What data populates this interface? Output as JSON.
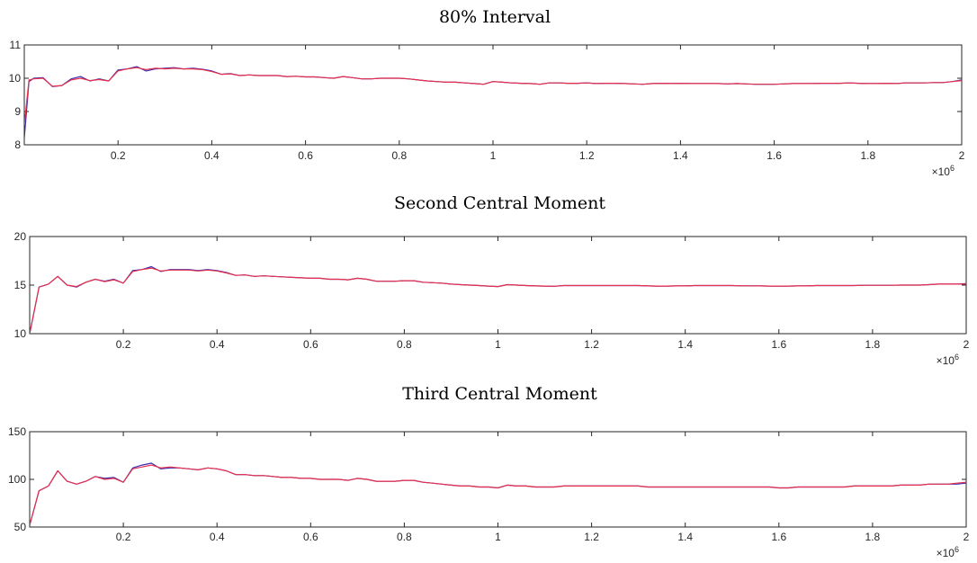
{
  "chart_data": [
    {
      "type": "line",
      "title": "80% Interval",
      "xlabel": "",
      "ylabel": "",
      "xlim": [
        0,
        2000000
      ],
      "ylim": [
        8,
        11
      ],
      "x_ticks": [
        "0.2",
        "0.4",
        "0.6",
        "0.8",
        "1",
        "1.2",
        "1.4",
        "1.6",
        "1.8",
        "2"
      ],
      "y_ticks": [
        "8",
        "9",
        "10",
        "11"
      ],
      "x_exponent": "×10",
      "x_exponent_power": "6",
      "grid": false,
      "x": [
        0,
        10000,
        20000,
        40000,
        60000,
        80000,
        100000,
        120000,
        140000,
        160000,
        180000,
        200000,
        220000,
        240000,
        260000,
        280000,
        300000,
        320000,
        340000,
        360000,
        380000,
        400000,
        420000,
        440000,
        460000,
        480000,
        500000,
        520000,
        540000,
        560000,
        580000,
        600000,
        620000,
        640000,
        660000,
        680000,
        700000,
        720000,
        740000,
        760000,
        780000,
        800000,
        820000,
        840000,
        860000,
        880000,
        900000,
        920000,
        940000,
        960000,
        980000,
        1000000,
        1020000,
        1040000,
        1060000,
        1080000,
        1100000,
        1120000,
        1140000,
        1160000,
        1180000,
        1200000,
        1220000,
        1240000,
        1260000,
        1280000,
        1300000,
        1320000,
        1340000,
        1360000,
        1380000,
        1400000,
        1420000,
        1440000,
        1460000,
        1480000,
        1500000,
        1520000,
        1540000,
        1560000,
        1580000,
        1600000,
        1620000,
        1640000,
        1660000,
        1680000,
        1700000,
        1720000,
        1740000,
        1760000,
        1780000,
        1800000,
        1820000,
        1840000,
        1860000,
        1880000,
        1900000,
        1920000,
        1940000,
        1960000,
        1980000,
        2000000
      ],
      "series": [
        {
          "color": "#3a2cb0",
          "values": [
            8.2,
            9.9,
            10.0,
            10.02,
            9.75,
            9.78,
            9.98,
            10.05,
            9.92,
            9.98,
            9.92,
            10.25,
            10.28,
            10.35,
            10.22,
            10.28,
            10.3,
            10.32,
            10.28,
            10.3,
            10.27,
            10.22,
            10.12,
            10.14,
            10.08,
            10.1,
            10.08,
            10.08,
            10.08,
            10.05,
            10.06,
            10.04,
            10.04,
            10.02,
            10.0,
            10.05,
            10.02,
            9.98,
            9.98,
            10.0,
            10.0,
            10.0,
            9.98,
            9.95,
            9.92,
            9.9,
            9.88,
            9.88,
            9.86,
            9.84,
            9.82,
            9.9,
            9.88,
            9.86,
            9.85,
            9.84,
            9.82,
            9.86,
            9.86,
            9.85,
            9.85,
            9.86,
            9.84,
            9.85,
            9.85,
            9.84,
            9.83,
            9.82,
            9.84,
            9.85,
            9.84,
            9.85,
            9.84,
            9.84,
            9.84,
            9.84,
            9.83,
            9.84,
            9.83,
            9.82,
            9.82,
            9.82,
            9.83,
            9.84,
            9.84,
            9.84,
            9.85,
            9.85,
            9.85,
            9.86,
            9.85,
            9.84,
            9.84,
            9.85,
            9.84,
            9.86,
            9.86,
            9.86,
            9.87,
            9.87,
            9.9,
            9.95
          ]
        },
        {
          "color": "#e8304c",
          "values": [
            8.6,
            9.95,
            9.98,
            10.0,
            9.76,
            9.78,
            9.95,
            10.0,
            9.93,
            9.96,
            9.92,
            10.22,
            10.28,
            10.32,
            10.26,
            10.3,
            10.28,
            10.3,
            10.28,
            10.28,
            10.26,
            10.2,
            10.12,
            10.13,
            10.08,
            10.1,
            10.08,
            10.08,
            10.08,
            10.05,
            10.06,
            10.04,
            10.04,
            10.02,
            10.0,
            10.05,
            10.02,
            9.98,
            9.98,
            10.0,
            10.0,
            10.0,
            9.98,
            9.95,
            9.92,
            9.9,
            9.88,
            9.88,
            9.86,
            9.84,
            9.82,
            9.9,
            9.88,
            9.86,
            9.85,
            9.84,
            9.82,
            9.86,
            9.86,
            9.85,
            9.85,
            9.86,
            9.84,
            9.85,
            9.85,
            9.84,
            9.83,
            9.82,
            9.84,
            9.85,
            9.84,
            9.85,
            9.84,
            9.84,
            9.84,
            9.84,
            9.83,
            9.84,
            9.83,
            9.82,
            9.82,
            9.82,
            9.83,
            9.84,
            9.84,
            9.84,
            9.85,
            9.85,
            9.85,
            9.86,
            9.85,
            9.84,
            9.84,
            9.85,
            9.84,
            9.86,
            9.86,
            9.86,
            9.87,
            9.87,
            9.9,
            9.93
          ]
        }
      ]
    },
    {
      "type": "line",
      "title": "Second Central Moment",
      "xlabel": "",
      "ylabel": "",
      "xlim": [
        0,
        2000000
      ],
      "ylim": [
        10,
        20
      ],
      "x_ticks": [
        "0.2",
        "0.4",
        "0.6",
        "0.8",
        "1",
        "1.2",
        "1.4",
        "1.6",
        "1.8",
        "2"
      ],
      "y_ticks": [
        "10",
        "15",
        "20"
      ],
      "x_exponent": "×10",
      "x_exponent_power": "6",
      "grid": false,
      "x": [
        0,
        20000,
        40000,
        60000,
        80000,
        100000,
        120000,
        140000,
        160000,
        180000,
        200000,
        220000,
        240000,
        260000,
        280000,
        300000,
        320000,
        340000,
        360000,
        380000,
        400000,
        420000,
        440000,
        460000,
        480000,
        500000,
        520000,
        540000,
        560000,
        580000,
        600000,
        620000,
        640000,
        660000,
        680000,
        700000,
        720000,
        740000,
        760000,
        780000,
        800000,
        820000,
        840000,
        860000,
        880000,
        900000,
        920000,
        940000,
        960000,
        980000,
        1000000,
        1020000,
        1040000,
        1060000,
        1080000,
        1100000,
        1120000,
        1140000,
        1160000,
        1180000,
        1200000,
        1220000,
        1240000,
        1260000,
        1280000,
        1300000,
        1320000,
        1340000,
        1360000,
        1380000,
        1400000,
        1420000,
        1440000,
        1460000,
        1480000,
        1500000,
        1520000,
        1540000,
        1560000,
        1580000,
        1600000,
        1620000,
        1640000,
        1660000,
        1680000,
        1700000,
        1720000,
        1740000,
        1760000,
        1780000,
        1800000,
        1820000,
        1840000,
        1860000,
        1880000,
        1900000,
        1920000,
        1940000,
        1960000,
        1980000,
        2000000
      ],
      "series": [
        {
          "color": "#3a2cb0",
          "values": [
            10.0,
            14.8,
            15.1,
            15.9,
            15.0,
            14.8,
            15.3,
            15.6,
            15.4,
            15.6,
            15.2,
            16.5,
            16.6,
            16.9,
            16.4,
            16.6,
            16.6,
            16.6,
            16.5,
            16.6,
            16.5,
            16.3,
            16.0,
            16.05,
            15.9,
            15.95,
            15.9,
            15.85,
            15.8,
            15.75,
            15.7,
            15.7,
            15.6,
            15.6,
            15.55,
            15.7,
            15.6,
            15.4,
            15.4,
            15.4,
            15.45,
            15.45,
            15.3,
            15.25,
            15.2,
            15.1,
            15.05,
            15.0,
            14.95,
            14.9,
            14.85,
            15.05,
            15.0,
            14.95,
            14.92,
            14.9,
            14.88,
            14.95,
            14.95,
            14.95,
            14.95,
            14.95,
            14.95,
            14.95,
            14.95,
            14.95,
            14.92,
            14.9,
            14.9,
            14.92,
            14.92,
            14.95,
            14.95,
            14.95,
            14.95,
            14.95,
            14.93,
            14.93,
            14.92,
            14.9,
            14.9,
            14.9,
            14.92,
            14.92,
            14.95,
            14.95,
            14.95,
            14.95,
            14.95,
            14.98,
            14.98,
            14.98,
            14.98,
            15.0,
            15.0,
            15.0,
            15.05,
            15.1,
            15.1,
            15.1,
            15.15
          ]
        },
        {
          "color": "#e8304c",
          "values": [
            10.0,
            14.8,
            15.1,
            15.9,
            15.0,
            14.85,
            15.3,
            15.6,
            15.35,
            15.55,
            15.2,
            16.4,
            16.6,
            16.75,
            16.45,
            16.55,
            16.55,
            16.55,
            16.45,
            16.55,
            16.45,
            16.25,
            16.0,
            16.05,
            15.9,
            15.95,
            15.9,
            15.85,
            15.8,
            15.75,
            15.7,
            15.7,
            15.6,
            15.6,
            15.55,
            15.7,
            15.6,
            15.4,
            15.4,
            15.4,
            15.45,
            15.45,
            15.3,
            15.25,
            15.2,
            15.1,
            15.05,
            15.0,
            14.95,
            14.9,
            14.85,
            15.05,
            15.0,
            14.95,
            14.92,
            14.9,
            14.88,
            14.95,
            14.95,
            14.95,
            14.95,
            14.95,
            14.95,
            14.95,
            14.95,
            14.95,
            14.92,
            14.9,
            14.9,
            14.92,
            14.92,
            14.95,
            14.95,
            14.95,
            14.95,
            14.95,
            14.93,
            14.93,
            14.92,
            14.9,
            14.9,
            14.9,
            14.92,
            14.92,
            14.95,
            14.95,
            14.95,
            14.95,
            14.95,
            14.98,
            14.98,
            14.98,
            14.98,
            15.0,
            15.0,
            15.0,
            15.05,
            15.1,
            15.1,
            15.1,
            15.1
          ]
        }
      ]
    },
    {
      "type": "line",
      "title": "Third Central Moment",
      "xlabel": "",
      "ylabel": "",
      "xlim": [
        0,
        2000000
      ],
      "ylim": [
        50,
        150
      ],
      "x_ticks": [
        "0.2",
        "0.4",
        "0.6",
        "0.8",
        "1",
        "1.2",
        "1.4",
        "1.6",
        "1.8",
        "2"
      ],
      "y_ticks": [
        "50",
        "100",
        "150"
      ],
      "x_exponent": "×10",
      "x_exponent_power": "6",
      "grid": false,
      "x": [
        0,
        20000,
        40000,
        60000,
        80000,
        100000,
        120000,
        140000,
        160000,
        180000,
        200000,
        220000,
        240000,
        260000,
        280000,
        300000,
        320000,
        340000,
        360000,
        380000,
        400000,
        420000,
        440000,
        460000,
        480000,
        500000,
        520000,
        540000,
        560000,
        580000,
        600000,
        620000,
        640000,
        660000,
        680000,
        700000,
        720000,
        740000,
        760000,
        780000,
        800000,
        820000,
        840000,
        860000,
        880000,
        900000,
        920000,
        940000,
        960000,
        980000,
        1000000,
        1020000,
        1040000,
        1060000,
        1080000,
        1100000,
        1120000,
        1140000,
        1160000,
        1180000,
        1200000,
        1220000,
        1240000,
        1260000,
        1280000,
        1300000,
        1320000,
        1340000,
        1360000,
        1380000,
        1400000,
        1420000,
        1440000,
        1460000,
        1480000,
        1500000,
        1520000,
        1540000,
        1560000,
        1580000,
        1600000,
        1620000,
        1640000,
        1660000,
        1680000,
        1700000,
        1720000,
        1740000,
        1760000,
        1780000,
        1800000,
        1820000,
        1840000,
        1860000,
        1880000,
        1900000,
        1920000,
        1940000,
        1960000,
        1980000,
        2000000
      ],
      "series": [
        {
          "color": "#3a2cb0",
          "values": [
            52,
            88,
            93,
            109,
            98,
            95,
            98,
            103,
            101,
            102,
            97,
            112,
            115,
            117,
            111,
            112,
            112,
            111,
            110,
            112,
            111,
            109,
            105,
            105,
            104,
            104,
            103,
            102,
            102,
            101,
            101,
            100,
            100,
            100,
            99,
            101,
            100,
            98,
            98,
            98,
            99,
            99,
            97,
            96,
            95,
            94,
            93,
            93,
            92,
            92,
            91,
            94,
            93,
            93,
            92,
            92,
            92,
            93,
            93,
            93,
            93,
            93,
            93,
            93,
            93,
            93,
            92,
            92,
            92,
            92,
            92,
            92,
            92,
            92,
            92,
            92,
            92,
            92,
            92,
            92,
            91,
            91,
            92,
            92,
            92,
            92,
            92,
            92,
            93,
            93,
            93,
            93,
            93,
            94,
            94,
            94,
            95,
            95,
            95,
            95,
            96
          ]
        },
        {
          "color": "#e8304c",
          "values": [
            52,
            88,
            93,
            109,
            98,
            95,
            98,
            103,
            100,
            101,
            97,
            111,
            113,
            115,
            112,
            113,
            112,
            111,
            110,
            112,
            111,
            109,
            105,
            105,
            104,
            104,
            103,
            102,
            102,
            101,
            101,
            100,
            100,
            100,
            99,
            101,
            100,
            98,
            98,
            98,
            99,
            99,
            97,
            96,
            95,
            94,
            93,
            93,
            92,
            92,
            91,
            94,
            93,
            93,
            92,
            92,
            92,
            93,
            93,
            93,
            93,
            93,
            93,
            93,
            93,
            93,
            92,
            92,
            92,
            92,
            92,
            92,
            92,
            92,
            92,
            92,
            92,
            92,
            92,
            92,
            91,
            91,
            92,
            92,
            92,
            92,
            92,
            92,
            93,
            93,
            93,
            93,
            93,
            94,
            94,
            94,
            95,
            95,
            95,
            96,
            97
          ]
        }
      ]
    }
  ]
}
